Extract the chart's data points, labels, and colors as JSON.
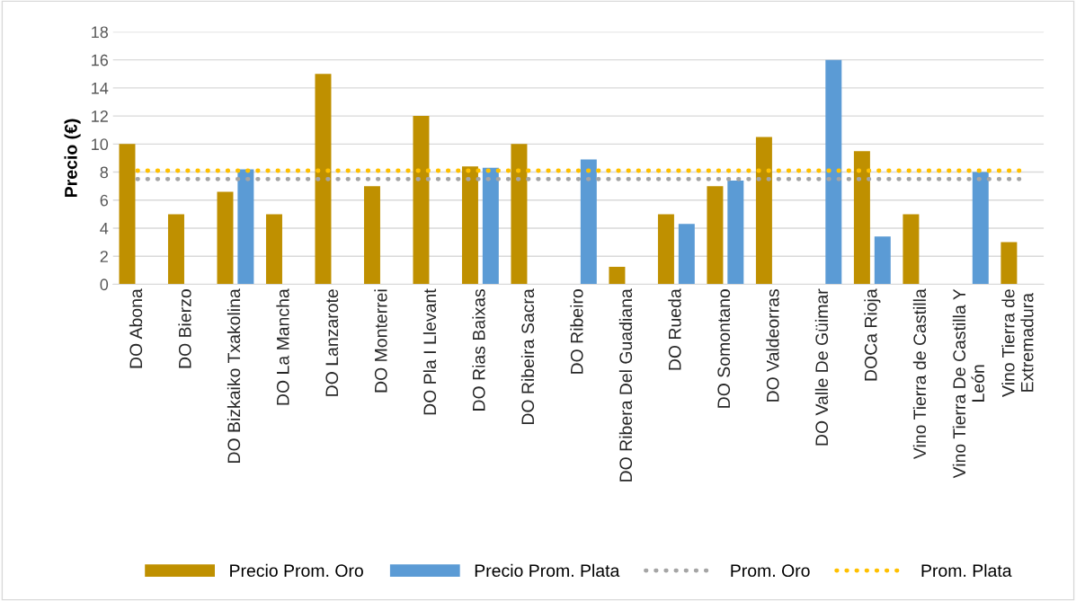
{
  "chart_data": {
    "type": "bar",
    "ylabel": "Precio (€)",
    "categories": [
      "DO Abona",
      "DO Bierzo",
      "DO Bizkaiko Txakolina",
      "DO La Mancha",
      "DO Lanzarote",
      "DO Monterrei",
      "DO Pla I Llevant",
      "DO Rias Baixas",
      "DO Ribeira Sacra",
      "DO Ribeiro",
      "DO Ribera Del Guadiana",
      "DO Rueda",
      "DO Somontano",
      "DO Valdeorras",
      "DO Valle De Güimar",
      "DOCa Rioja",
      "Vino Tierra de Castilla",
      "Vino Tierra De Castilla Y\nLeón",
      "Vino Tierra de\nExtremadura"
    ],
    "series": [
      {
        "name": "Precio Prom. Oro",
        "color": "#bf9000",
        "values": [
          10,
          5,
          6.6,
          5,
          15,
          7,
          12,
          8.4,
          10,
          null,
          1.25,
          5,
          7,
          10.5,
          null,
          9.5,
          5,
          null,
          3
        ]
      },
      {
        "name": "Precio Prom. Plata",
        "color": "#5b9bd5",
        "values": [
          null,
          null,
          8.2,
          null,
          null,
          null,
          null,
          8.3,
          null,
          8.9,
          null,
          4.3,
          7.4,
          null,
          16,
          3.4,
          null,
          8,
          null
        ]
      },
      {
        "name": "Prom. Oro",
        "type": "line",
        "line_style": "dotted",
        "color": "#a5a5a5",
        "values": [
          7.5,
          7.5,
          7.5,
          7.5,
          7.5,
          7.5,
          7.5,
          7.5,
          7.5,
          7.5,
          7.5,
          7.5,
          7.5,
          7.5,
          7.5,
          7.5,
          7.5,
          7.5,
          7.5
        ]
      },
      {
        "name": "Prom. Plata",
        "type": "line",
        "line_style": "dotted",
        "color": "#ffc000",
        "values": [
          8.1,
          8.1,
          8.1,
          8.1,
          8.1,
          8.1,
          8.1,
          8.1,
          8.1,
          8.1,
          8.1,
          8.1,
          8.1,
          8.1,
          8.1,
          8.1,
          8.1,
          8.1,
          8.1
        ]
      }
    ],
    "ylim": [
      0,
      18
    ],
    "yticks": [
      0,
      2,
      4,
      6,
      8,
      10,
      12,
      14,
      16,
      18
    ],
    "grid": "y",
    "legend": "bottom"
  }
}
